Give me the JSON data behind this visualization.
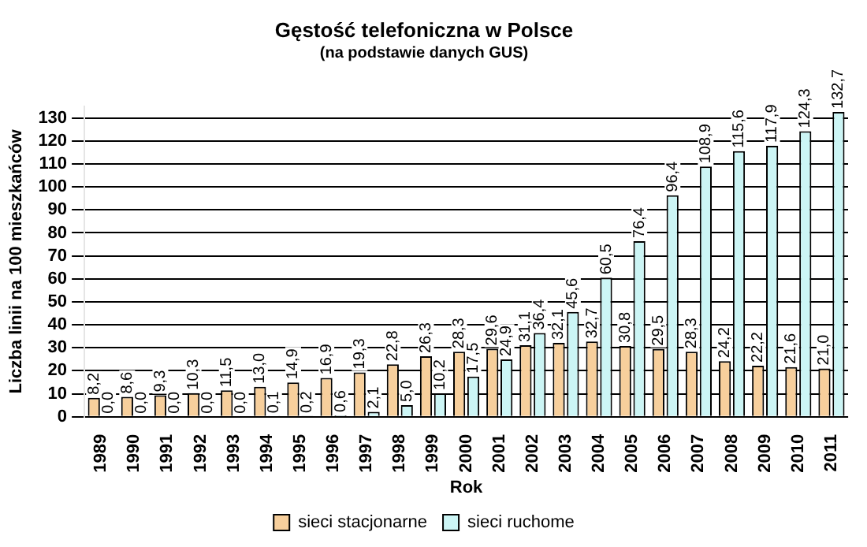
{
  "chart_data": {
    "type": "bar",
    "title": "Gęstość telefoniczna w Polsce",
    "subtitle": "(na podstawie danych GUS)",
    "xlabel": "Rok",
    "ylabel": "Liczba linii na 100 mieszkańców",
    "categories": [
      "1989",
      "1990",
      "1991",
      "1992",
      "1993",
      "1994",
      "1995",
      "1996",
      "1997",
      "1998",
      "1999",
      "2000",
      "2001",
      "2002",
      "2003",
      "2004",
      "2005",
      "2006",
      "2007",
      "2008",
      "2009",
      "2010",
      "2011"
    ],
    "series": [
      {
        "name": "sieci stacjonarne",
        "color": "#f7cf9c",
        "values": [
          8.2,
          8.6,
          9.3,
          10.3,
          11.5,
          13.0,
          14.9,
          16.9,
          19.3,
          22.8,
          26.3,
          28.3,
          29.6,
          31.1,
          32.1,
          32.7,
          30.8,
          29.5,
          28.3,
          24.2,
          22.2,
          21.6,
          21.0
        ],
        "value_labels": [
          "8,2",
          "8,6",
          "9,3",
          "10,3",
          "11,5",
          "13,0",
          "14,9",
          "16,9",
          "19,3",
          "22,8",
          "26,3",
          "28,3",
          "29,6",
          "31,1",
          "32,1",
          "32,7",
          "30,8",
          "29,5",
          "28,3",
          "24,2",
          "22,2",
          "21,6",
          "21,0"
        ]
      },
      {
        "name": "sieci ruchome",
        "color": "#ccf5f5",
        "values": [
          0.0,
          0.0,
          0.0,
          0.0,
          0.0,
          0.1,
          0.2,
          0.6,
          2.1,
          5.0,
          10.2,
          17.5,
          24.9,
          36.4,
          45.6,
          60.5,
          76.4,
          96.4,
          108.9,
          115.6,
          117.9,
          124.3,
          132.7
        ],
        "value_labels": [
          "0,0",
          "0,0",
          "0,0",
          "0,0",
          "0,0",
          "0,1",
          "0,2",
          "0,6",
          "2,1",
          "5,0",
          "10,2",
          "17,5",
          "24,9",
          "36,4",
          "45,6",
          "60,5",
          "76,4",
          "96,4",
          "108,9",
          "115,6",
          "117,9",
          "124,3",
          "132,7"
        ]
      }
    ],
    "ylim": [
      0,
      135
    ],
    "yticks": [
      0,
      10,
      20,
      30,
      40,
      50,
      60,
      70,
      80,
      90,
      100,
      110,
      120,
      130
    ],
    "grid": "y",
    "legend": "bottom"
  }
}
